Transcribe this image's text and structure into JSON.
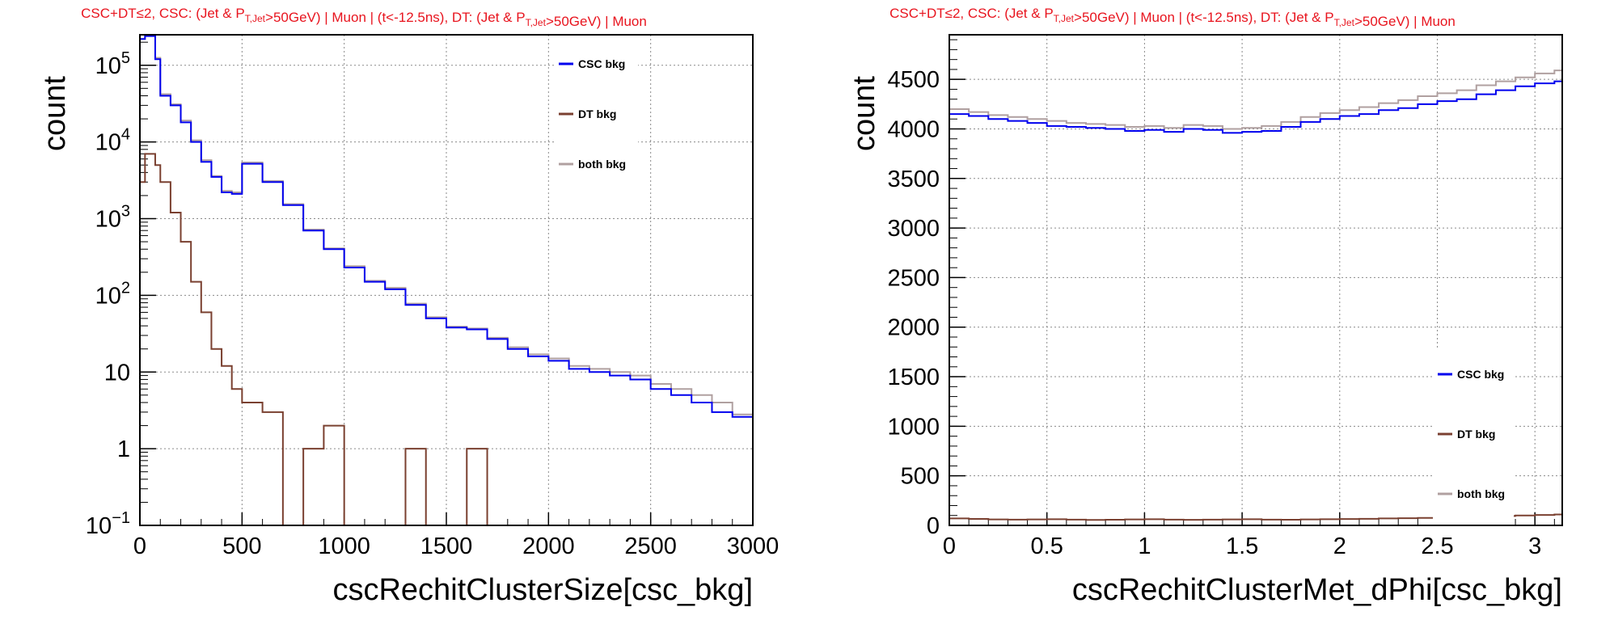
{
  "chart_data": [
    {
      "type": "line",
      "title": "CSC+DT≤2, CSC: (Jet & P_{T,Jet}>50GeV) | Muon | (t<-12.5ns), DT: (Jet & P_{T,Jet}>50GeV) | Muon",
      "xlabel": "cscRechitClusterSize[csc_bkg]",
      "ylabel": "count",
      "xlim": [
        0,
        3000
      ],
      "ylim": [
        0.1,
        250000
      ],
      "log_y": true,
      "grid": true,
      "legend_placement": "top-right",
      "x_ticks": [
        "0",
        "500",
        "1000",
        "1500",
        "2000",
        "2500",
        "3000"
      ],
      "y_ticks": [
        "10^-1",
        "1",
        "10",
        "10^2",
        "10^3",
        "10^4",
        "10^5"
      ],
      "x": [
        0,
        25,
        50,
        75,
        100,
        150,
        200,
        250,
        300,
        350,
        400,
        450,
        500,
        600,
        700,
        800,
        900,
        1000,
        1100,
        1200,
        1300,
        1400,
        1500,
        1600,
        1700,
        1800,
        1900,
        2000,
        2100,
        2200,
        2300,
        2400,
        2500,
        2600,
        2700,
        2800,
        2900,
        3000
      ],
      "series": [
        {
          "name": "CSC bkg",
          "color": "#0000ee",
          "values": [
            220000,
            240000,
            240000,
            120000,
            40000,
            30000,
            18000,
            10000,
            5500,
            3500,
            2200,
            2100,
            5200,
            3000,
            1500,
            700,
            400,
            230,
            150,
            120,
            75,
            50,
            38,
            36,
            27,
            20,
            16,
            14,
            11,
            10,
            9,
            8,
            6,
            5,
            4,
            3,
            2.6,
            2
          ]
        },
        {
          "name": "DT bkg",
          "color": "#7a4030",
          "values": [
            3000,
            7000,
            7000,
            5000,
            3000,
            1200,
            500,
            150,
            60,
            20,
            12,
            6,
            4,
            3,
            0.1,
            1,
            2,
            0.1,
            0.1,
            0.1,
            1,
            0.1,
            0.1,
            1,
            0.1,
            0.1,
            0.1,
            0.1,
            0.1,
            0.1,
            0.1,
            0.1,
            0.1,
            0.1,
            0.1,
            0.1,
            0.1,
            0.1
          ]
        },
        {
          "name": "both bkg",
          "color": "#b0a0a0",
          "values": [
            220000,
            245000,
            245000,
            125000,
            42000,
            31000,
            19000,
            10500,
            5800,
            3600,
            2300,
            2200,
            5400,
            3100,
            1550,
            720,
            410,
            240,
            155,
            125,
            78,
            52,
            39,
            37,
            28,
            21,
            17,
            15,
            12,
            11,
            10,
            9,
            7,
            6,
            5,
            4,
            2.8,
            2
          ]
        }
      ]
    },
    {
      "type": "line",
      "title": "CSC+DT≤2, CSC: (Jet & P_{T,Jet}>50GeV) | Muon | (t<-12.5ns), DT: (Jet & P_{T,Jet}>50GeV) | Muon",
      "xlabel": "cscRechitClusterMet_dPhi[csc_bkg]",
      "ylabel": "count",
      "xlim": [
        0,
        3.14
      ],
      "ylim": [
        0,
        4950
      ],
      "grid": true,
      "legend_placement": "bottom-right",
      "x_ticks": [
        "0",
        "0.5",
        "1",
        "1.5",
        "2",
        "2.5",
        "3"
      ],
      "y_ticks": [
        "0",
        "500",
        "1000",
        "1500",
        "2000",
        "2500",
        "3000",
        "3500",
        "4000",
        "4500"
      ],
      "x": [
        0,
        0.1,
        0.2,
        0.3,
        0.4,
        0.5,
        0.6,
        0.7,
        0.8,
        0.9,
        1.0,
        1.1,
        1.2,
        1.3,
        1.4,
        1.5,
        1.6,
        1.7,
        1.8,
        1.9,
        2.0,
        2.1,
        2.2,
        2.3,
        2.4,
        2.5,
        2.6,
        2.7,
        2.8,
        2.9,
        3.0,
        3.1
      ],
      "series": [
        {
          "name": "CSC bkg",
          "color": "#0000ee",
          "values": [
            4150,
            4130,
            4100,
            4080,
            4060,
            4030,
            4020,
            4010,
            4000,
            3980,
            3990,
            3970,
            4000,
            3990,
            3960,
            3970,
            3980,
            4020,
            4070,
            4100,
            4130,
            4150,
            4190,
            4210,
            4250,
            4280,
            4300,
            4350,
            4390,
            4430,
            4460,
            4480
          ]
        },
        {
          "name": "DT bkg",
          "color": "#7a4030",
          "values": [
            70,
            65,
            60,
            58,
            60,
            62,
            58,
            55,
            57,
            60,
            62,
            58,
            56,
            58,
            60,
            62,
            58,
            57,
            60,
            62,
            64,
            66,
            70,
            72,
            75,
            80,
            85,
            90,
            95,
            100,
            105,
            110
          ]
        },
        {
          "name": "both bkg",
          "color": "#b0a0a0",
          "values": [
            4200,
            4170,
            4140,
            4120,
            4100,
            4080,
            4060,
            4050,
            4040,
            4020,
            4030,
            4010,
            4040,
            4030,
            4000,
            4010,
            4030,
            4070,
            4120,
            4160,
            4190,
            4220,
            4260,
            4290,
            4330,
            4360,
            4390,
            4440,
            4480,
            4520,
            4560,
            4590
          ]
        }
      ]
    }
  ]
}
